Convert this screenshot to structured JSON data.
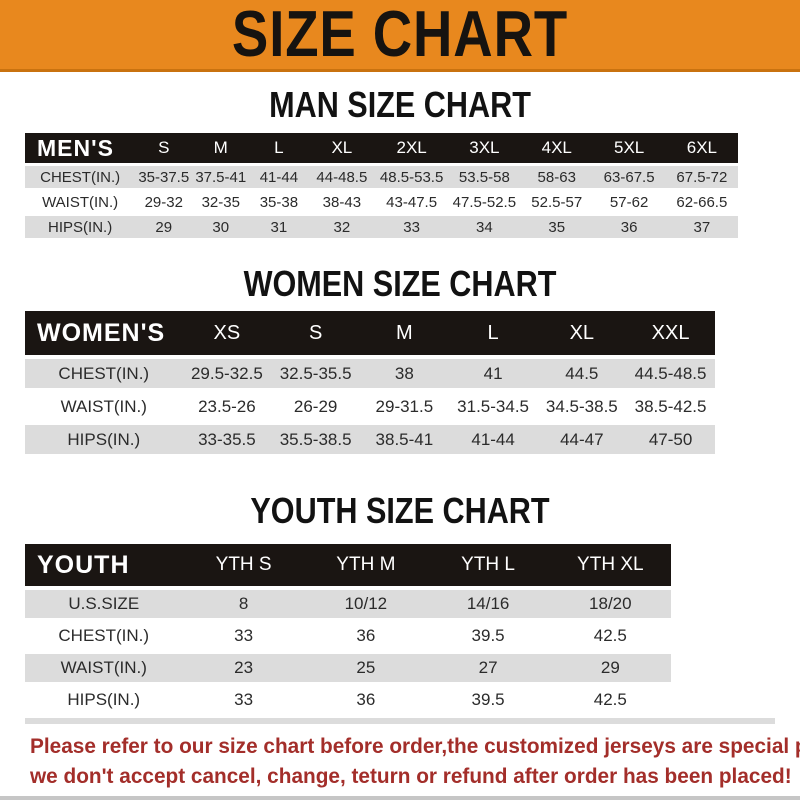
{
  "banner": {
    "title": "SIZE CHART"
  },
  "colors": {
    "banner_orange": "#E8881E",
    "banner_edge": "#C9720F",
    "header_black": "#1A1512",
    "row_gray": "#DCDCDC",
    "note_red": "#A32E2A"
  },
  "chart_data": [
    {
      "type": "table",
      "title": "MAN SIZE CHART",
      "header_label": "MEN'S",
      "columns": [
        "S",
        "M",
        "L",
        "XL",
        "2XL",
        "3XL",
        "4XL",
        "5XL",
        "6XL"
      ],
      "rows": [
        {
          "label": "CHEST(IN.)",
          "values": [
            "35-37.5",
            "37.5-41",
            "41-44",
            "44-48.5",
            "48.5-53.5",
            "53.5-58",
            "58-63",
            "63-67.5",
            "67.5-72"
          ]
        },
        {
          "label": "WAIST(IN.)",
          "values": [
            "29-32",
            "32-35",
            "35-38",
            "38-43",
            "43-47.5",
            "47.5-52.5",
            "52.5-57",
            "57-62",
            "62-66.5"
          ]
        },
        {
          "label": "HIPS(IN.)",
          "values": [
            "29",
            "30",
            "31",
            "32",
            "33",
            "34",
            "35",
            "36",
            "37"
          ]
        }
      ]
    },
    {
      "type": "table",
      "title": "WOMEN SIZE CHART",
      "header_label": "WOMEN'S",
      "columns": [
        "XS",
        "S",
        "M",
        "L",
        "XL",
        "XXL"
      ],
      "rows": [
        {
          "label": "CHEST(IN.)",
          "values": [
            "29.5-32.5",
            "32.5-35.5",
            "38",
            "41",
            "44.5",
            "44.5-48.5"
          ]
        },
        {
          "label": "WAIST(IN.)",
          "values": [
            "23.5-26",
            "26-29",
            "29-31.5",
            "31.5-34.5",
            "34.5-38.5",
            "38.5-42.5"
          ]
        },
        {
          "label": "HIPS(IN.)",
          "values": [
            "33-35.5",
            "35.5-38.5",
            "38.5-41",
            "41-44",
            "44-47",
            "47-50"
          ]
        }
      ]
    },
    {
      "type": "table",
      "title": "YOUTH SIZE CHART",
      "header_label": "YOUTH",
      "columns": [
        "YTH S",
        "YTH M",
        "YTH L",
        "YTH XL"
      ],
      "rows": [
        {
          "label": "U.S.SIZE",
          "values": [
            "8",
            "10/12",
            "14/16",
            "18/20"
          ]
        },
        {
          "label": "CHEST(IN.)",
          "values": [
            "33",
            "36",
            "39.5",
            "42.5"
          ]
        },
        {
          "label": "WAIST(IN.)",
          "values": [
            "23",
            "25",
            "27",
            "29"
          ]
        },
        {
          "label": "HIPS(IN.)",
          "values": [
            "33",
            "36",
            "39.5",
            "42.5"
          ]
        }
      ]
    }
  ],
  "note": {
    "line1": "Please refer to our size chart before order,the customized jerseys are special products,",
    "line2": "we don't accept cancel, change, teturn or refund after order has been placed!"
  }
}
